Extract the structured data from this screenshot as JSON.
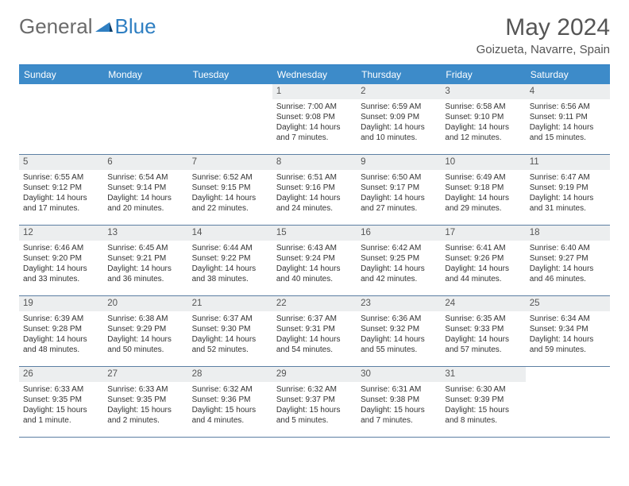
{
  "logo": {
    "text1": "General",
    "text2": "Blue"
  },
  "title": "May 2024",
  "location": "Goizueta, Navarre, Spain",
  "colors": {
    "header_bg": "#3d8bc9",
    "border_top": "#2f7fc2",
    "row_border": "#5c7fa3",
    "daynum_bg": "#eceeef",
    "text": "#333333",
    "title_text": "#555555"
  },
  "dayNames": [
    "Sunday",
    "Monday",
    "Tuesday",
    "Wednesday",
    "Thursday",
    "Friday",
    "Saturday"
  ],
  "weeks": [
    [
      {
        "n": "",
        "sr": "",
        "ss": "",
        "dl": ""
      },
      {
        "n": "",
        "sr": "",
        "ss": "",
        "dl": ""
      },
      {
        "n": "",
        "sr": "",
        "ss": "",
        "dl": ""
      },
      {
        "n": "1",
        "sr": "Sunrise: 7:00 AM",
        "ss": "Sunset: 9:08 PM",
        "dl": "Daylight: 14 hours and 7 minutes."
      },
      {
        "n": "2",
        "sr": "Sunrise: 6:59 AM",
        "ss": "Sunset: 9:09 PM",
        "dl": "Daylight: 14 hours and 10 minutes."
      },
      {
        "n": "3",
        "sr": "Sunrise: 6:58 AM",
        "ss": "Sunset: 9:10 PM",
        "dl": "Daylight: 14 hours and 12 minutes."
      },
      {
        "n": "4",
        "sr": "Sunrise: 6:56 AM",
        "ss": "Sunset: 9:11 PM",
        "dl": "Daylight: 14 hours and 15 minutes."
      }
    ],
    [
      {
        "n": "5",
        "sr": "Sunrise: 6:55 AM",
        "ss": "Sunset: 9:12 PM",
        "dl": "Daylight: 14 hours and 17 minutes."
      },
      {
        "n": "6",
        "sr": "Sunrise: 6:54 AM",
        "ss": "Sunset: 9:14 PM",
        "dl": "Daylight: 14 hours and 20 minutes."
      },
      {
        "n": "7",
        "sr": "Sunrise: 6:52 AM",
        "ss": "Sunset: 9:15 PM",
        "dl": "Daylight: 14 hours and 22 minutes."
      },
      {
        "n": "8",
        "sr": "Sunrise: 6:51 AM",
        "ss": "Sunset: 9:16 PM",
        "dl": "Daylight: 14 hours and 24 minutes."
      },
      {
        "n": "9",
        "sr": "Sunrise: 6:50 AM",
        "ss": "Sunset: 9:17 PM",
        "dl": "Daylight: 14 hours and 27 minutes."
      },
      {
        "n": "10",
        "sr": "Sunrise: 6:49 AM",
        "ss": "Sunset: 9:18 PM",
        "dl": "Daylight: 14 hours and 29 minutes."
      },
      {
        "n": "11",
        "sr": "Sunrise: 6:47 AM",
        "ss": "Sunset: 9:19 PM",
        "dl": "Daylight: 14 hours and 31 minutes."
      }
    ],
    [
      {
        "n": "12",
        "sr": "Sunrise: 6:46 AM",
        "ss": "Sunset: 9:20 PM",
        "dl": "Daylight: 14 hours and 33 minutes."
      },
      {
        "n": "13",
        "sr": "Sunrise: 6:45 AM",
        "ss": "Sunset: 9:21 PM",
        "dl": "Daylight: 14 hours and 36 minutes."
      },
      {
        "n": "14",
        "sr": "Sunrise: 6:44 AM",
        "ss": "Sunset: 9:22 PM",
        "dl": "Daylight: 14 hours and 38 minutes."
      },
      {
        "n": "15",
        "sr": "Sunrise: 6:43 AM",
        "ss": "Sunset: 9:24 PM",
        "dl": "Daylight: 14 hours and 40 minutes."
      },
      {
        "n": "16",
        "sr": "Sunrise: 6:42 AM",
        "ss": "Sunset: 9:25 PM",
        "dl": "Daylight: 14 hours and 42 minutes."
      },
      {
        "n": "17",
        "sr": "Sunrise: 6:41 AM",
        "ss": "Sunset: 9:26 PM",
        "dl": "Daylight: 14 hours and 44 minutes."
      },
      {
        "n": "18",
        "sr": "Sunrise: 6:40 AM",
        "ss": "Sunset: 9:27 PM",
        "dl": "Daylight: 14 hours and 46 minutes."
      }
    ],
    [
      {
        "n": "19",
        "sr": "Sunrise: 6:39 AM",
        "ss": "Sunset: 9:28 PM",
        "dl": "Daylight: 14 hours and 48 minutes."
      },
      {
        "n": "20",
        "sr": "Sunrise: 6:38 AM",
        "ss": "Sunset: 9:29 PM",
        "dl": "Daylight: 14 hours and 50 minutes."
      },
      {
        "n": "21",
        "sr": "Sunrise: 6:37 AM",
        "ss": "Sunset: 9:30 PM",
        "dl": "Daylight: 14 hours and 52 minutes."
      },
      {
        "n": "22",
        "sr": "Sunrise: 6:37 AM",
        "ss": "Sunset: 9:31 PM",
        "dl": "Daylight: 14 hours and 54 minutes."
      },
      {
        "n": "23",
        "sr": "Sunrise: 6:36 AM",
        "ss": "Sunset: 9:32 PM",
        "dl": "Daylight: 14 hours and 55 minutes."
      },
      {
        "n": "24",
        "sr": "Sunrise: 6:35 AM",
        "ss": "Sunset: 9:33 PM",
        "dl": "Daylight: 14 hours and 57 minutes."
      },
      {
        "n": "25",
        "sr": "Sunrise: 6:34 AM",
        "ss": "Sunset: 9:34 PM",
        "dl": "Daylight: 14 hours and 59 minutes."
      }
    ],
    [
      {
        "n": "26",
        "sr": "Sunrise: 6:33 AM",
        "ss": "Sunset: 9:35 PM",
        "dl": "Daylight: 15 hours and 1 minute."
      },
      {
        "n": "27",
        "sr": "Sunrise: 6:33 AM",
        "ss": "Sunset: 9:35 PM",
        "dl": "Daylight: 15 hours and 2 minutes."
      },
      {
        "n": "28",
        "sr": "Sunrise: 6:32 AM",
        "ss": "Sunset: 9:36 PM",
        "dl": "Daylight: 15 hours and 4 minutes."
      },
      {
        "n": "29",
        "sr": "Sunrise: 6:32 AM",
        "ss": "Sunset: 9:37 PM",
        "dl": "Daylight: 15 hours and 5 minutes."
      },
      {
        "n": "30",
        "sr": "Sunrise: 6:31 AM",
        "ss": "Sunset: 9:38 PM",
        "dl": "Daylight: 15 hours and 7 minutes."
      },
      {
        "n": "31",
        "sr": "Sunrise: 6:30 AM",
        "ss": "Sunset: 9:39 PM",
        "dl": "Daylight: 15 hours and 8 minutes."
      },
      {
        "n": "",
        "sr": "",
        "ss": "",
        "dl": ""
      }
    ]
  ]
}
